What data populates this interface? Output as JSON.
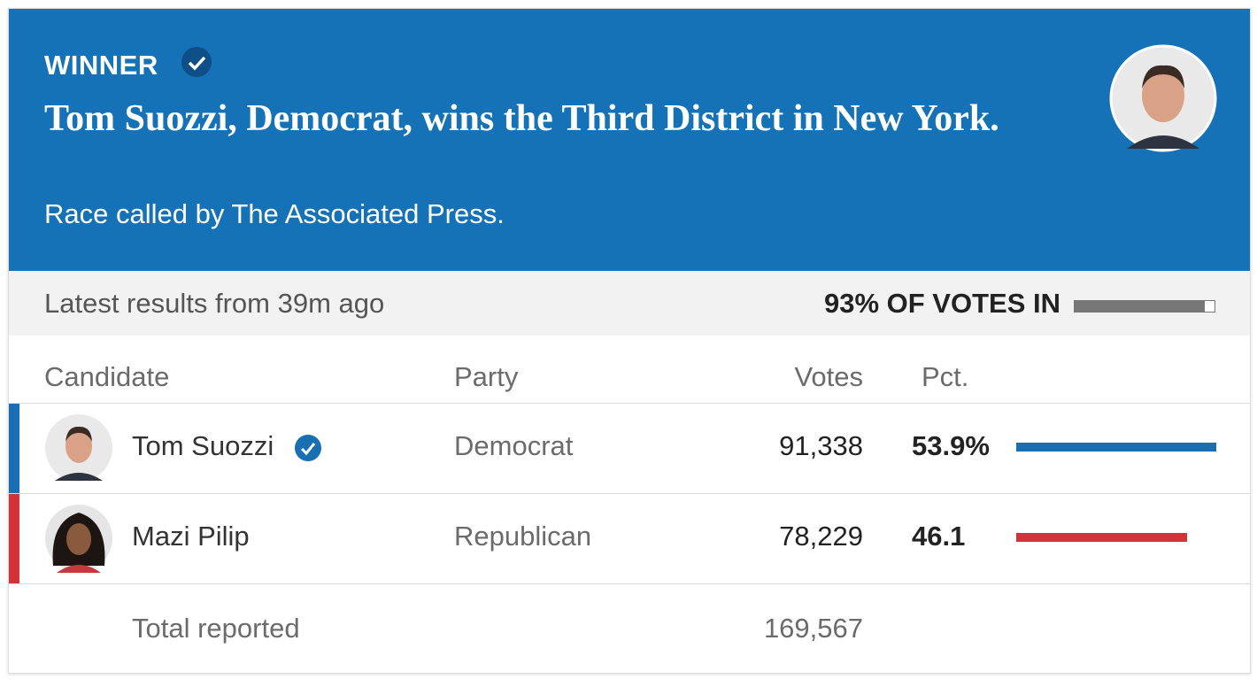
{
  "header": {
    "label": "WINNER",
    "headline": "Tom Suozzi, Democrat, wins the Third District in New York.",
    "subtitle": "Race called by The Associated Press."
  },
  "status": {
    "updated": "Latest results from 39m ago",
    "reporting": {
      "value": 93,
      "label": "93% OF VOTES IN"
    }
  },
  "table": {
    "columns": [
      "Candidate",
      "Party",
      "Votes",
      "Pct."
    ],
    "rows": [
      {
        "name": "Tom Suozzi",
        "party": "Democrat",
        "votes": "91,338",
        "pct": {
          "value": 53.9,
          "label": "53.9%"
        },
        "color": "#1a6fb3",
        "winner": true
      },
      {
        "name": "Mazi Pilip",
        "party": "Republican",
        "votes": "78,229",
        "pct": {
          "value": 46.1,
          "label": "46.1"
        },
        "color": "#d0343a",
        "winner": false
      }
    ],
    "total": {
      "label": "Total reported",
      "votes": "169,567"
    }
  }
}
